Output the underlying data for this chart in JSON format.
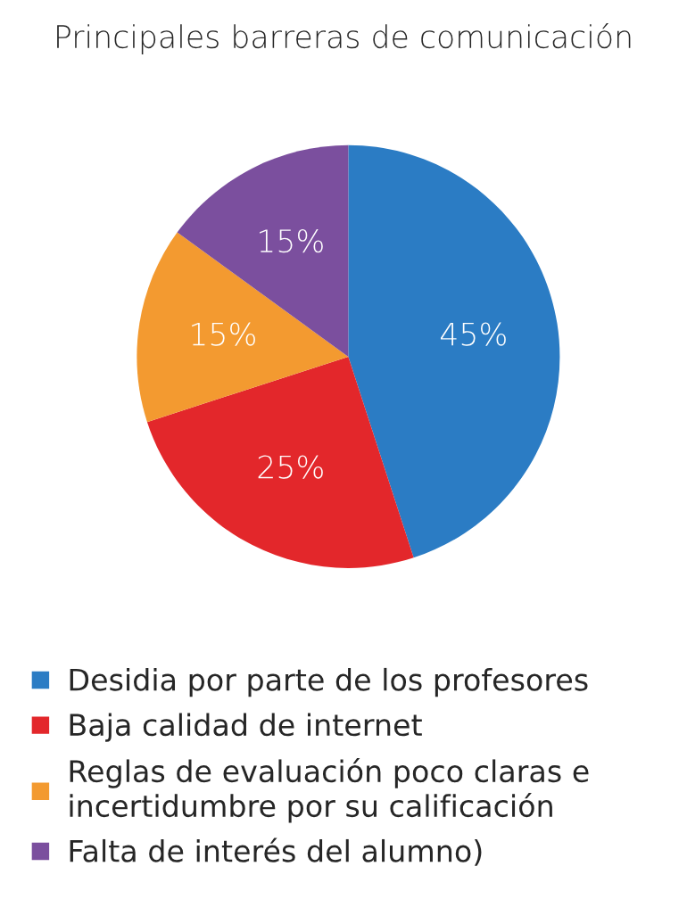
{
  "chart_data": {
    "type": "pie",
    "title": "Principales barreras de comunicación",
    "categories": [
      "Desidia por parte de los profesores",
      "Baja calidad de internet",
      "Reglas de evaluación poco claras e\nincertidumbre por su calificación",
      "Falta de interés del alumno)"
    ],
    "values": [
      45,
      25,
      15,
      15
    ],
    "colors": [
      "#2b7cc4",
      "#e3272b",
      "#f39a30",
      "#7b4f9e"
    ],
    "value_labels": [
      "45%",
      "25%",
      "15%",
      "15%"
    ],
    "legend": "bottom"
  }
}
